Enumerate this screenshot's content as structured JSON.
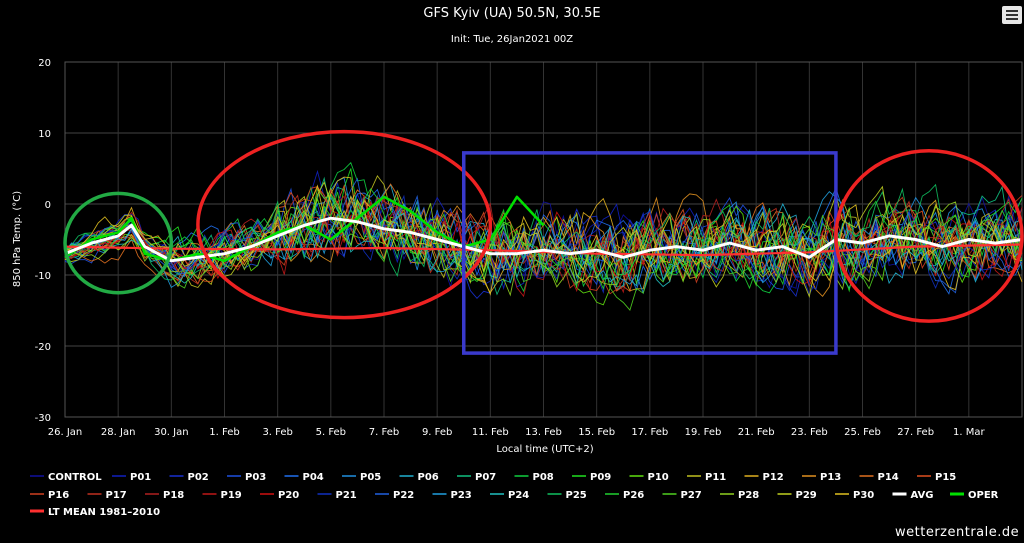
{
  "header": {
    "title": "GFS Kyiv (UA) 50.5N, 30.5E",
    "subtitle": "Init: Tue, 26Jan2021 00Z"
  },
  "watermark": "wetterzentrale.de",
  "icons": {
    "menu": "hamburger-menu-icon"
  },
  "chart_data": {
    "type": "line",
    "title": "GFS Kyiv (UA) 50.5N, 30.5E",
    "subtitle": "Init: Tue, 26Jan2021 00Z",
    "xlabel": "Local time (UTC+2)",
    "ylabel": "850 hPa Temp. (°C)",
    "ylim": [
      -30,
      20
    ],
    "yticks": [
      20,
      10,
      0,
      -10,
      -20,
      -30
    ],
    "xlim": [
      "2021-01-26",
      "2021-03-03"
    ],
    "xticks": [
      {
        "date": "2021-01-26",
        "label": "26. Jan"
      },
      {
        "date": "2021-01-28",
        "label": "28. Jan"
      },
      {
        "date": "2021-01-30",
        "label": "30. Jan"
      },
      {
        "date": "2021-02-01",
        "label": "1. Feb"
      },
      {
        "date": "2021-02-03",
        "label": "3. Feb"
      },
      {
        "date": "2021-02-05",
        "label": "5. Feb"
      },
      {
        "date": "2021-02-07",
        "label": "7. Feb"
      },
      {
        "date": "2021-02-09",
        "label": "9. Feb"
      },
      {
        "date": "2021-02-11",
        "label": "11. Feb"
      },
      {
        "date": "2021-02-13",
        "label": "13. Feb"
      },
      {
        "date": "2021-02-15",
        "label": "15. Feb"
      },
      {
        "date": "2021-02-17",
        "label": "17. Feb"
      },
      {
        "date": "2021-02-19",
        "label": "19. Feb"
      },
      {
        "date": "2021-02-21",
        "label": "21. Feb"
      },
      {
        "date": "2021-02-23",
        "label": "23. Feb"
      },
      {
        "date": "2021-02-25",
        "label": "25. Feb"
      },
      {
        "date": "2021-02-27",
        "label": "27. Feb"
      },
      {
        "date": "2021-03-01",
        "label": "1. Mar"
      }
    ],
    "grid": true,
    "legend_position": "bottom",
    "avg_series": {
      "name": "AVG",
      "color": "#ffffff",
      "points": [
        [
          "2021-01-26",
          -7
        ],
        [
          "2021-01-27",
          -5.5
        ],
        [
          "2021-01-28",
          -4.5
        ],
        [
          "2021-01-28 12:00",
          -3
        ],
        [
          "2021-01-29",
          -6
        ],
        [
          "2021-01-30",
          -8
        ],
        [
          "2021-01-31",
          -7.5
        ],
        [
          "2021-02-01",
          -7
        ],
        [
          "2021-02-02",
          -6
        ],
        [
          "2021-02-03",
          -4.5
        ],
        [
          "2021-02-04",
          -3
        ],
        [
          "2021-02-05",
          -2
        ],
        [
          "2021-02-06",
          -2.5
        ],
        [
          "2021-02-07",
          -3.5
        ],
        [
          "2021-02-08",
          -4
        ],
        [
          "2021-02-09",
          -5
        ],
        [
          "2021-02-10",
          -6
        ],
        [
          "2021-02-11",
          -7
        ],
        [
          "2021-02-12",
          -7
        ],
        [
          "2021-02-13",
          -6.5
        ],
        [
          "2021-02-14",
          -7
        ],
        [
          "2021-02-15",
          -6.5
        ],
        [
          "2021-02-16",
          -7.5
        ],
        [
          "2021-02-17",
          -6.5
        ],
        [
          "2021-02-18",
          -6
        ],
        [
          "2021-02-19",
          -6.5
        ],
        [
          "2021-02-20",
          -5.5
        ],
        [
          "2021-02-21",
          -6.5
        ],
        [
          "2021-02-22",
          -6
        ],
        [
          "2021-02-23",
          -7.5
        ],
        [
          "2021-02-24",
          -5
        ],
        [
          "2021-02-25",
          -5.5
        ],
        [
          "2021-02-26",
          -4.5
        ],
        [
          "2021-02-27",
          -5
        ],
        [
          "2021-02-28",
          -6
        ],
        [
          "2021-03-01",
          -5
        ],
        [
          "2021-03-02",
          -5.5
        ],
        [
          "2021-03-03",
          -5
        ]
      ]
    },
    "oper_series": {
      "name": "OPER",
      "color": "#00e000",
      "points": [
        [
          "2021-01-26",
          -7.5
        ],
        [
          "2021-01-27",
          -5
        ],
        [
          "2021-01-28",
          -4
        ],
        [
          "2021-01-28 12:00",
          -2
        ],
        [
          "2021-01-29",
          -7
        ],
        [
          "2021-01-30",
          -8
        ],
        [
          "2021-01-31",
          -7
        ],
        [
          "2021-02-01",
          -8
        ],
        [
          "2021-02-02",
          -6
        ],
        [
          "2021-02-03",
          -4
        ],
        [
          "2021-02-04",
          -3
        ],
        [
          "2021-02-05",
          -5
        ],
        [
          "2021-02-06",
          -2
        ],
        [
          "2021-02-07",
          1
        ],
        [
          "2021-02-08",
          -1
        ],
        [
          "2021-02-09",
          -4
        ],
        [
          "2021-02-10",
          -6
        ],
        [
          "2021-02-11",
          -5
        ],
        [
          "2021-02-12",
          1
        ],
        [
          "2021-02-13",
          -3
        ]
      ]
    },
    "lt_mean_series": {
      "name": "LT MEAN 1981-2010",
      "color": "#ff3030",
      "points": [
        [
          "2021-01-26",
          -6
        ],
        [
          "2021-01-30",
          -6.3
        ],
        [
          "2021-02-03",
          -6.4
        ],
        [
          "2021-02-07",
          -6.2
        ],
        [
          "2021-02-11",
          -6.5
        ],
        [
          "2021-02-15",
          -7
        ],
        [
          "2021-02-19",
          -7.2
        ],
        [
          "2021-02-23",
          -6.8
        ],
        [
          "2021-02-27",
          -6
        ],
        [
          "2021-03-03",
          -5.7
        ]
      ]
    },
    "ensemble_colors": {
      "CONTROL": "#1010a0",
      "P01": "#1020c0",
      "P02": "#1830d0",
      "P03": "#1e50e0",
      "P04": "#2070f0",
      "P05": "#2090e0",
      "P06": "#20b0d0",
      "P07": "#10c080",
      "P08": "#10d040",
      "P09": "#20e020",
      "P10": "#60e010",
      "P11": "#c0c020",
      "P12": "#e0b020",
      "P13": "#e09020",
      "P14": "#e07020",
      "P15": "#e05020",
      "P16": "#d04020",
      "P17": "#c03020",
      "P18": "#b02020",
      "P19": "#c01818",
      "P20": "#d01010",
      "P21": "#1030c0",
      "P22": "#2060e0",
      "P23": "#20a0e0",
      "P24": "#20c0c0",
      "P25": "#10c060",
      "P26": "#20d030",
      "P27": "#50d020",
      "P28": "#90d020",
      "P29": "#c0d020",
      "P30": "#e0c020"
    }
  },
  "legend": {
    "rows": [
      [
        {
          "label": "CONTROL",
          "color": "#1010a0",
          "type": "thin"
        },
        {
          "label": "P01",
          "color": "#1020c0",
          "type": "thin"
        },
        {
          "label": "P02",
          "color": "#1830d0",
          "type": "thin"
        },
        {
          "label": "P03",
          "color": "#1e50e0",
          "type": "thin"
        },
        {
          "label": "P04",
          "color": "#2070f0",
          "type": "thin"
        },
        {
          "label": "P05",
          "color": "#2090e0",
          "type": "thin"
        },
        {
          "label": "P06",
          "color": "#20b0d0",
          "type": "thin"
        },
        {
          "label": "P07",
          "color": "#10c080",
          "type": "thin"
        },
        {
          "label": "P08",
          "color": "#10d040",
          "type": "thin"
        },
        {
          "label": "P09",
          "color": "#20e020",
          "type": "thin"
        },
        {
          "label": "P10",
          "color": "#60e010",
          "type": "thin"
        },
        {
          "label": "P11",
          "color": "#c0c020",
          "type": "thin"
        },
        {
          "label": "P12",
          "color": "#e0b020",
          "type": "thin"
        },
        {
          "label": "P13",
          "color": "#e09020",
          "type": "thin"
        },
        {
          "label": "P14",
          "color": "#e07020",
          "type": "thin"
        },
        {
          "label": "P15",
          "color": "#e05020",
          "type": "thin"
        }
      ],
      [
        {
          "label": "P16",
          "color": "#d04020",
          "type": "thin"
        },
        {
          "label": "P17",
          "color": "#c03020",
          "type": "thin"
        },
        {
          "label": "P18",
          "color": "#b02020",
          "type": "thin"
        },
        {
          "label": "P19",
          "color": "#c01818",
          "type": "thin"
        },
        {
          "label": "P20",
          "color": "#d01010",
          "type": "thin"
        },
        {
          "label": "P21",
          "color": "#1030c0",
          "type": "thin"
        },
        {
          "label": "P22",
          "color": "#2060e0",
          "type": "thin"
        },
        {
          "label": "P23",
          "color": "#20a0e0",
          "type": "thin"
        },
        {
          "label": "P24",
          "color": "#20c0c0",
          "type": "thin"
        },
        {
          "label": "P25",
          "color": "#10c060",
          "type": "thin"
        },
        {
          "label": "P26",
          "color": "#20d030",
          "type": "thin"
        },
        {
          "label": "P27",
          "color": "#50d020",
          "type": "thin"
        },
        {
          "label": "P28",
          "color": "#90d020",
          "type": "thin"
        },
        {
          "label": "P29",
          "color": "#c0d020",
          "type": "thin"
        },
        {
          "label": "P30",
          "color": "#e0c020",
          "type": "thin"
        },
        {
          "label": "AVG",
          "color": "#ffffff",
          "type": "thick"
        },
        {
          "label": "OPER",
          "color": "#00e000",
          "type": "thick"
        }
      ],
      [
        {
          "label": "LT MEAN 1981–2010",
          "color": "#ff3030",
          "type": "thick"
        }
      ]
    ]
  },
  "annotations": [
    {
      "shape": "ellipse",
      "color": "#22aa44",
      "from": "2021-01-26",
      "to": "2021-01-30",
      "y_top": 1.5,
      "y_bottom": -12.5
    },
    {
      "shape": "ellipse",
      "color": "#ee2222",
      "from": "2021-01-31",
      "to": "2021-02-11",
      "y_top": 10.2,
      "y_bottom": -16
    },
    {
      "shape": "rect",
      "color": "#3a3acc",
      "from": "2021-02-10",
      "to": "2021-02-24",
      "y_top": 7.2,
      "y_bottom": -21
    },
    {
      "shape": "ellipse",
      "color": "#ee2222",
      "from": "2021-02-24",
      "to": "2021-03-03",
      "y_top": 7.5,
      "y_bottom": -16.5
    }
  ]
}
